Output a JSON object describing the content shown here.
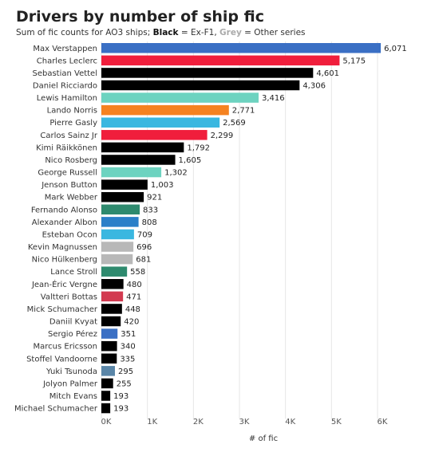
{
  "title": "Drivers by number of ship fic",
  "subtitle": {
    "prefix": "Sum of fic counts for AO3 ships; ",
    "black_word": "Black",
    "middle": " = Ex-F1, ",
    "grey_word": "Grey",
    "suffix": " = Other series"
  },
  "chart_data": {
    "type": "bar",
    "orientation": "horizontal",
    "title": "Drivers by number of ship fic",
    "xlabel": "# of fic",
    "ylabel": "",
    "xlim": [
      0,
      6000
    ],
    "x_ticks": [
      "0K",
      "1K",
      "2K",
      "3K",
      "4K",
      "5K",
      "6K"
    ],
    "x_tick_values": [
      0,
      1000,
      2000,
      3000,
      4000,
      5000,
      6000
    ],
    "grid": true,
    "categories": [
      "Max Verstappen",
      "Charles Leclerc",
      "Sebastian Vettel",
      "Daniel Ricciardo",
      "Lewis Hamilton",
      "Lando Norris",
      "Pierre Gasly",
      "Carlos Sainz Jr",
      "Kimi Räikkönen",
      "Nico Rosberg",
      "George Russell",
      "Jenson Button",
      "Mark Webber",
      "Fernando Alonso",
      "Alexander Albon",
      "Esteban Ocon",
      "Kevin Magnussen",
      "Nico Hülkenberg",
      "Lance Stroll",
      "Jean-Éric Vergne",
      "Valtteri Bottas",
      "Mick Schumacher",
      "Daniil Kvyat",
      "Sergio Pérez",
      "Marcus Ericsson",
      "Stoffel Vandoorne",
      "Yuki Tsunoda",
      "Jolyon Palmer",
      "Mitch Evans",
      "Michael Schumacher"
    ],
    "values": [
      6071,
      5175,
      4601,
      4306,
      3416,
      2771,
      2569,
      2299,
      1792,
      1605,
      1302,
      1003,
      921,
      833,
      808,
      709,
      696,
      681,
      558,
      480,
      471,
      448,
      420,
      351,
      340,
      335,
      295,
      255,
      193,
      193
    ],
    "value_labels": [
      "6,071",
      "5,175",
      "4,601",
      "4,306",
      "3,416",
      "2,771",
      "2,569",
      "2,299",
      "1,792",
      "1,605",
      "1,302",
      "1,003",
      "921",
      "833",
      "808",
      "709",
      "696",
      "681",
      "558",
      "480",
      "471",
      "448",
      "420",
      "351",
      "340",
      "335",
      "295",
      "255",
      "193",
      "193"
    ],
    "colors": [
      "#3a6fc4",
      "#f01e3c",
      "#000000",
      "#000000",
      "#6dd3c0",
      "#f58220",
      "#3ab7e0",
      "#f01e3c",
      "#000000",
      "#000000",
      "#6dd3c0",
      "#000000",
      "#000000",
      "#2e8a6e",
      "#2a7fc8",
      "#3ab7e0",
      "#b8b8b8",
      "#b8b8b8",
      "#2e8a6e",
      "#000000",
      "#d23a50",
      "#000000",
      "#000000",
      "#3a6fc4",
      "#000000",
      "#000000",
      "#5a86a8",
      "#000000",
      "#000000",
      "#000000"
    ]
  }
}
